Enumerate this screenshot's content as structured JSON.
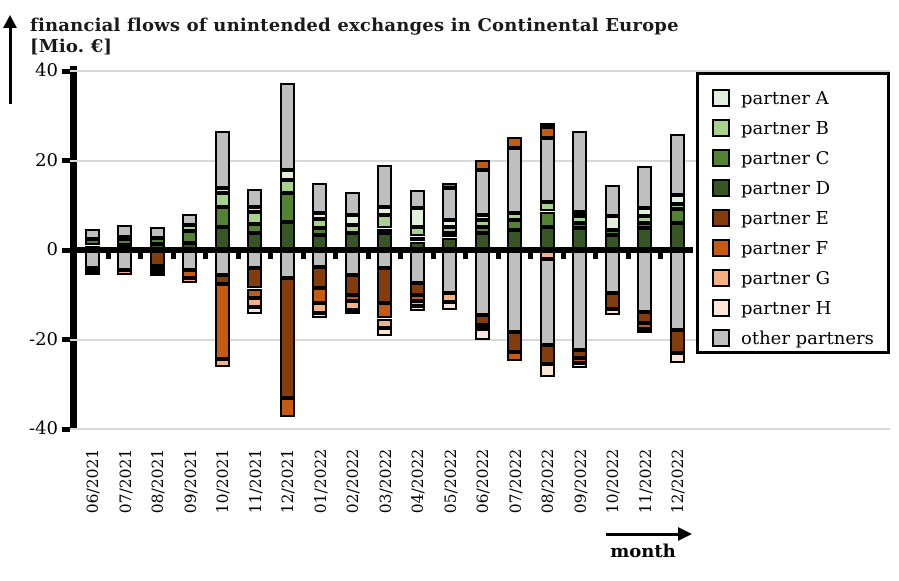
{
  "title": "financial flows of unintended exchanges in Continental Europe [Mio. €]",
  "xlabel": "month",
  "chart_data": {
    "type": "bar",
    "stacked": true,
    "title": "financial flows of unintended exchanges in Continental Europe [Mio. €]",
    "xlabel": "month",
    "ylabel": "Mio. €",
    "ylim": [
      -40,
      40
    ],
    "yticks": [
      40,
      20,
      0,
      -20,
      -40
    ],
    "grid": true,
    "legend_position": "top-right",
    "legend": [
      "partner A",
      "partner B",
      "partner C",
      "partner D",
      "partner E",
      "partner F",
      "partner G",
      "partner H",
      "other partners"
    ],
    "series_colors": {
      "partner A": "#E2EFDA",
      "partner B": "#A9D18E",
      "partner C": "#548235",
      "partner D": "#375623",
      "partner E": "#843C0C",
      "partner F": "#C55A11",
      "partner G": "#F4B183",
      "partner H": "#FBE5D6",
      "other partners": "#BFBFBF"
    },
    "categories": [
      "06/2021",
      "07/2021",
      "08/2021",
      "09/2021",
      "10/2021",
      "11/2021",
      "12/2021",
      "01/2022",
      "02/2022",
      "03/2022",
      "04/2022",
      "05/2022",
      "06/2022",
      "07/2022",
      "08/2022",
      "09/2022",
      "10/2022",
      "11/2022",
      "12/2022"
    ],
    "bars": [
      {
        "month": "06/2021",
        "pos": [
          [
            "partner D",
            1.0
          ],
          [
            "partner C",
            1.5
          ],
          [
            "other partners",
            2.3
          ]
        ],
        "neg": [
          [
            "other partners",
            -4.0
          ],
          [
            "partner G",
            -0.7
          ],
          [
            "partner H",
            -0.7
          ]
        ]
      },
      {
        "month": "07/2021",
        "pos": [
          [
            "partner D",
            1.1
          ],
          [
            "partner C",
            1.3
          ],
          [
            "partner B",
            0.6
          ],
          [
            "other partners",
            2.5
          ]
        ],
        "neg": [
          [
            "other partners",
            -4.4
          ],
          [
            "partner G",
            -1.1
          ]
        ]
      },
      {
        "month": "08/2021",
        "pos": [
          [
            "partner D",
            1.3
          ],
          [
            "partner C",
            1.3
          ],
          [
            "other partners",
            2.6
          ]
        ],
        "neg": [
          [
            "partner E",
            -3.6
          ],
          [
            "partner F",
            -0.6
          ],
          [
            "partner G",
            -0.8
          ],
          [
            "partner H",
            -0.9
          ]
        ]
      },
      {
        "month": "09/2021",
        "pos": [
          [
            "partner D",
            1.6
          ],
          [
            "partner C",
            2.6
          ],
          [
            "partner B",
            1.3
          ],
          [
            "other partners",
            2.5
          ]
        ],
        "neg": [
          [
            "other partners",
            -4.4
          ],
          [
            "partner F",
            -1.9
          ],
          [
            "partner G",
            -1.1
          ]
        ]
      },
      {
        "month": "10/2021",
        "pos": [
          [
            "partner D",
            5.2
          ],
          [
            "partner C",
            4.5
          ],
          [
            "partner B",
            3.1
          ],
          [
            "partner A",
            1.0
          ],
          [
            "other partners",
            12.9
          ]
        ],
        "neg": [
          [
            "other partners",
            -5.6
          ],
          [
            "partner E",
            -1.9
          ],
          [
            "partner F",
            -16.8
          ],
          [
            "partner G",
            -1.9
          ]
        ]
      },
      {
        "month": "11/2021",
        "pos": [
          [
            "partner D",
            3.7
          ],
          [
            "partner C",
            2.2
          ],
          [
            "partner B",
            2.6
          ],
          [
            "partner A",
            1.1
          ],
          [
            "other partners",
            4.1
          ]
        ],
        "neg": [
          [
            "other partners",
            -4.1
          ],
          [
            "partner E",
            -4.5
          ],
          [
            "partner F",
            -2.2
          ],
          [
            "partner G",
            -1.9
          ],
          [
            "partner H",
            -1.6
          ]
        ]
      },
      {
        "month": "12/2021",
        "pos": [
          [
            "partner D",
            6.2
          ],
          [
            "partner C",
            6.5
          ],
          [
            "partner B",
            3.0
          ],
          [
            "partner A",
            2.2
          ],
          [
            "other partners",
            19.5
          ]
        ],
        "neg": [
          [
            "other partners",
            -6.3
          ],
          [
            "partner E",
            -26.8
          ],
          [
            "partner F",
            -4.2
          ]
        ]
      },
      {
        "month": "01/2022",
        "pos": [
          [
            "partner D",
            3.3
          ],
          [
            "partner C",
            1.7
          ],
          [
            "partner B",
            2.0
          ],
          [
            "partner A",
            1.3
          ],
          [
            "other partners",
            6.7
          ]
        ],
        "neg": [
          [
            "other partners",
            -3.7
          ],
          [
            "partner E",
            -4.8
          ],
          [
            "partner F",
            -3.4
          ],
          [
            "partner G",
            -2.2
          ],
          [
            "partner H",
            -1.1
          ]
        ]
      },
      {
        "month": "02/2022",
        "pos": [
          [
            "partner D",
            3.7
          ],
          [
            "partner B",
            1.9
          ],
          [
            "partner A",
            2.2
          ],
          [
            "other partners",
            5.2
          ]
        ],
        "neg": [
          [
            "other partners",
            -5.6
          ],
          [
            "partner E",
            -4.5
          ],
          [
            "partner F",
            -1.3
          ],
          [
            "partner G",
            -2.1
          ],
          [
            "partner H",
            -0.4
          ]
        ]
      },
      {
        "month": "03/2022",
        "pos": [
          [
            "partner D",
            3.7
          ],
          [
            "partner C",
            1.1
          ],
          [
            "partner B",
            3.0
          ],
          [
            "partner A",
            1.9
          ],
          [
            "other partners",
            9.3
          ]
        ],
        "neg": [
          [
            "other partners",
            -4.1
          ],
          [
            "partner E",
            -7.8
          ],
          [
            "partner F",
            -3.4
          ],
          [
            "partner G",
            -2.2
          ],
          [
            "partner H",
            -1.7
          ]
        ]
      },
      {
        "month": "04/2022",
        "pos": [
          [
            "partner D",
            1.9
          ],
          [
            "partner C",
            1.1
          ],
          [
            "partner B",
            2.2
          ],
          [
            "partner A",
            4.1
          ],
          [
            "other partners",
            4.2
          ]
        ],
        "neg": [
          [
            "other partners",
            -7.4
          ],
          [
            "partner E",
            -2.6
          ],
          [
            "partner F",
            -1.3
          ],
          [
            "partner G",
            -1.3
          ],
          [
            "partner H",
            -1.1
          ]
        ]
      },
      {
        "month": "05/2022",
        "pos": [
          [
            "partner D",
            2.8
          ],
          [
            "partner C",
            0.9
          ],
          [
            "partner B",
            1.5
          ],
          [
            "partner A",
            1.5
          ],
          [
            "other partners",
            7.1
          ],
          [
            "partner F",
            1.1
          ]
        ],
        "neg": [
          [
            "other partners",
            -9.7
          ],
          [
            "partner G",
            -1.9
          ],
          [
            "partner H",
            -1.9
          ]
        ]
      },
      {
        "month": "06/2022",
        "pos": [
          [
            "partner D",
            3.7
          ],
          [
            "partner C",
            1.5
          ],
          [
            "partner B",
            1.5
          ],
          [
            "partner A",
            1.1
          ],
          [
            "other partners",
            10.1
          ],
          [
            "partner F",
            2.2
          ]
        ],
        "neg": [
          [
            "other partners",
            -14.5
          ],
          [
            "partner E",
            -2.2
          ],
          [
            "partner F",
            -0.9
          ],
          [
            "partner H",
            -2.5
          ]
        ]
      },
      {
        "month": "07/2022",
        "pos": [
          [
            "partner D",
            4.5
          ],
          [
            "partner C",
            2.2
          ],
          [
            "partner B",
            1.5
          ],
          [
            "other partners",
            14.5
          ],
          [
            "partner F",
            2.6
          ]
        ],
        "neg": [
          [
            "other partners",
            -18.3
          ],
          [
            "partner E",
            -4.5
          ],
          [
            "partner F",
            -1.9
          ]
        ]
      },
      {
        "month": "08/2022",
        "pos": [
          [
            "partner D",
            5.2
          ],
          [
            "partner C",
            3.4
          ],
          [
            "partner B",
            2.2
          ],
          [
            "other partners",
            14.2
          ],
          [
            "partner F",
            2.6
          ],
          [
            "partner H",
            0.8
          ]
        ],
        "neg": [
          [
            "partner G",
            -1.9
          ],
          [
            "other partners",
            -19.4
          ],
          [
            "partner E",
            -4.1
          ],
          [
            "partner H",
            -3.0
          ]
        ]
      },
      {
        "month": "09/2022",
        "pos": [
          [
            "partner D",
            4.9
          ],
          [
            "partner C",
            1.1
          ],
          [
            "partner B",
            1.5
          ],
          [
            "partner A",
            1.1
          ],
          [
            "other partners",
            18.0
          ]
        ],
        "neg": [
          [
            "other partners",
            -22.3
          ],
          [
            "partner E",
            -1.9
          ],
          [
            "partner F",
            -1.1
          ],
          [
            "partner H",
            -1.1
          ]
        ]
      },
      {
        "month": "10/2022",
        "pos": [
          [
            "partner D",
            3.4
          ],
          [
            "partner C",
            1.1
          ],
          [
            "partner A",
            3.0
          ],
          [
            "other partners",
            7.1
          ]
        ],
        "neg": [
          [
            "other partners",
            -9.7
          ],
          [
            "partner E",
            -3.4
          ],
          [
            "partner H",
            -1.5
          ]
        ]
      },
      {
        "month": "11/2022",
        "pos": [
          [
            "partner D",
            4.9
          ],
          [
            "partner C",
            1.1
          ],
          [
            "partner B",
            1.5
          ],
          [
            "partner A",
            1.9
          ],
          [
            "other partners",
            9.3
          ]
        ],
        "neg": [
          [
            "other partners",
            -13.8
          ],
          [
            "partner E",
            -2.6
          ],
          [
            "partner F",
            -1.3
          ],
          [
            "partner G",
            -0.9
          ]
        ]
      },
      {
        "month": "12/2022",
        "pos": [
          [
            "partner D",
            6.0
          ],
          [
            "partner C",
            3.1
          ],
          [
            "partner B",
            1.3
          ],
          [
            "partner A",
            1.9
          ],
          [
            "other partners",
            13.6
          ]
        ],
        "neg": [
          [
            "other partners",
            -17.9
          ],
          [
            "partner E",
            -5.2
          ],
          [
            "partner H",
            -2.2
          ]
        ]
      }
    ]
  }
}
